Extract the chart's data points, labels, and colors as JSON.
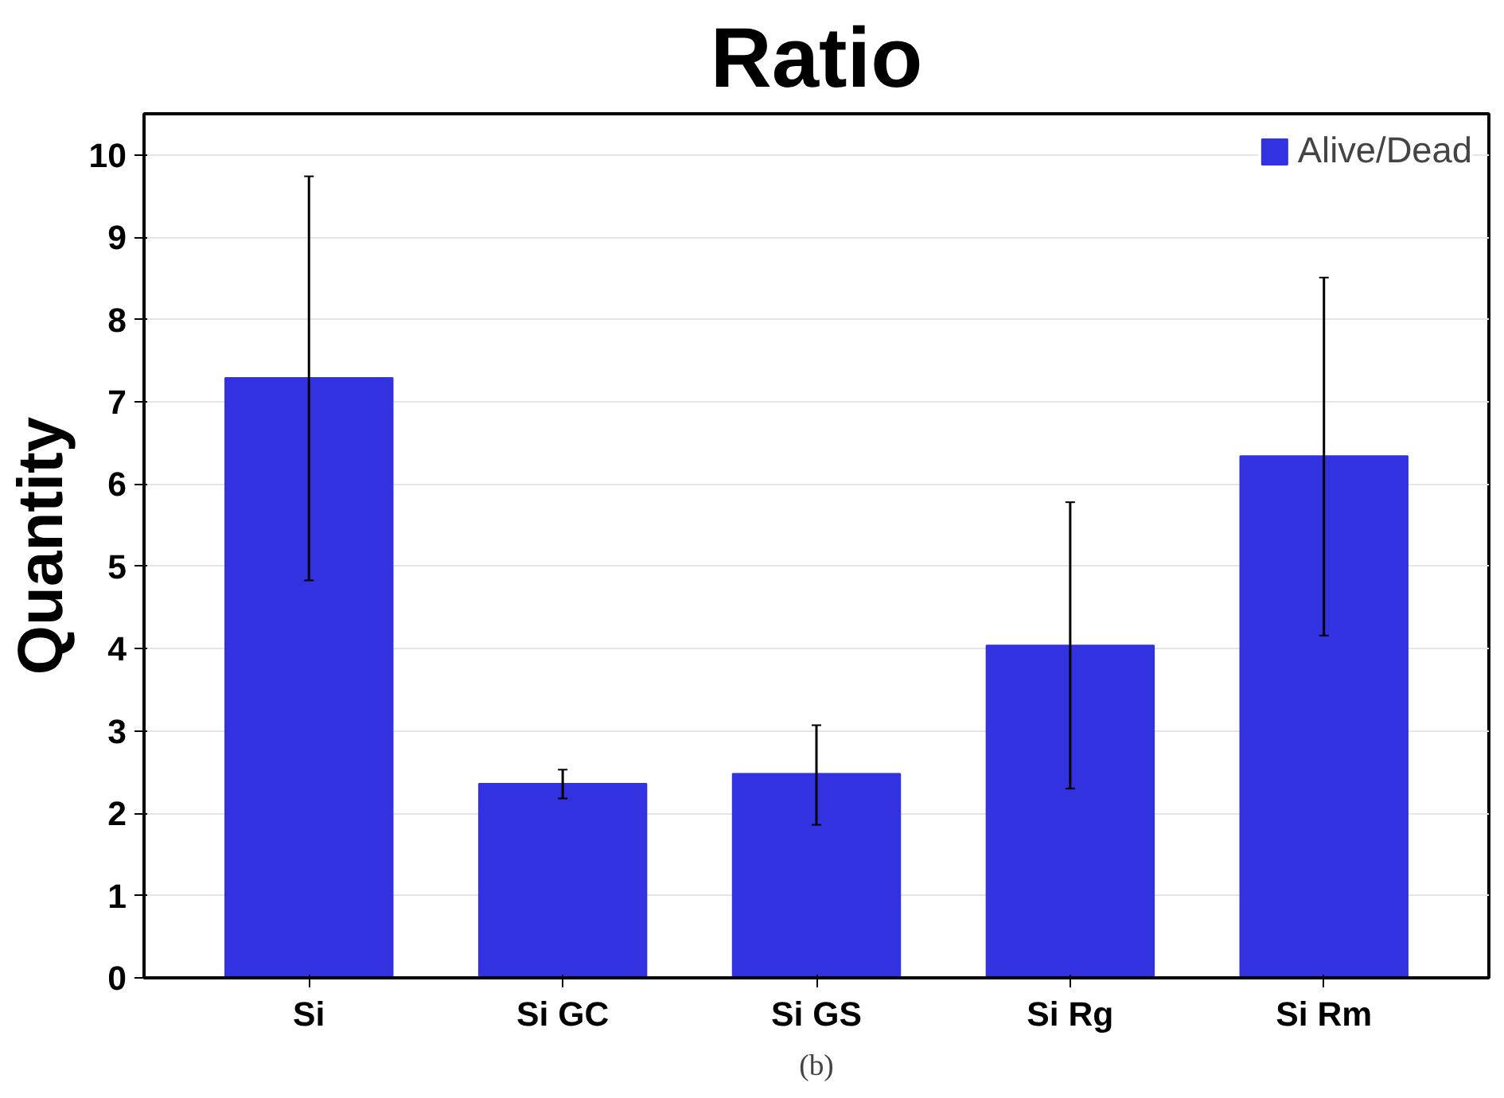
{
  "chart_data": {
    "type": "bar",
    "title": "Ratio",
    "ylabel": "Quantity",
    "categories": [
      "Si",
      "Si GC",
      "Si GS",
      "Si Rg",
      "Si Rm"
    ],
    "series": [
      {
        "name": "Alive/Dead",
        "color": "#3232e0",
        "values": [
          7.29,
          2.36,
          2.48,
          4.04,
          6.34
        ],
        "errors": [
          [
            4.83,
            9.74
          ],
          [
            2.18,
            2.53
          ],
          [
            1.86,
            3.07
          ],
          [
            2.3,
            5.78
          ],
          [
            4.16,
            8.51
          ]
        ]
      }
    ],
    "ylim": [
      0,
      10.5
    ],
    "yticks": [
      0,
      1,
      2,
      3,
      4,
      5,
      6,
      7,
      8,
      9,
      10
    ],
    "grid": "y",
    "legend": "top right",
    "annotations": [
      "(b)"
    ]
  }
}
